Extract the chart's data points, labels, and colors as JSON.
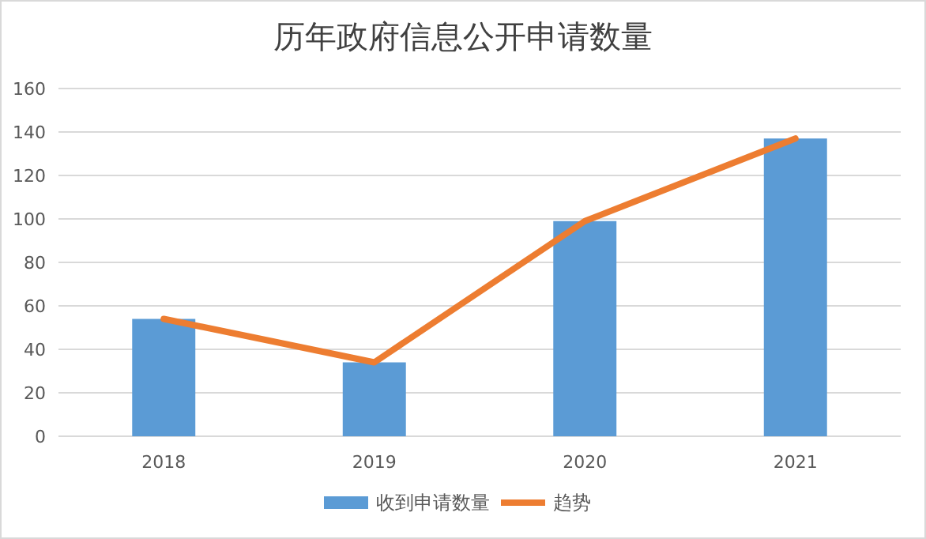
{
  "chart_data": {
    "type": "bar",
    "title": "历年政府信息公开申请数量",
    "categories": [
      "2018",
      "2019",
      "2020",
      "2021"
    ],
    "series": [
      {
        "name": "收到申请数量",
        "color": "#5b9bd5",
        "values": [
          54,
          34,
          99,
          137
        ]
      },
      {
        "name": "趋势",
        "type": "line",
        "color": "#ed7d31",
        "values": [
          54,
          34,
          99,
          137
        ]
      }
    ],
    "ylim": [
      0,
      160
    ],
    "yticks": [
      0,
      20,
      40,
      60,
      80,
      100,
      120,
      140,
      160
    ],
    "grid": "y",
    "legend": "bottom"
  }
}
